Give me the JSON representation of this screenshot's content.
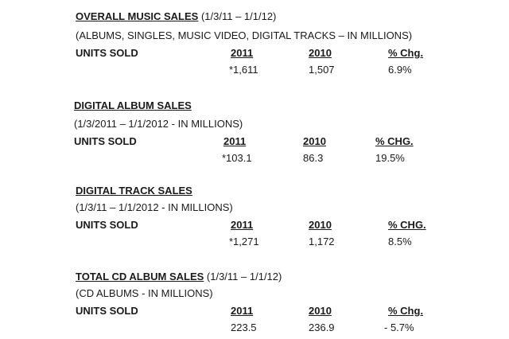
{
  "sections": [
    {
      "title": "OVERALL MUSIC SALES",
      "date_range": " (1/3/11 – 1/1/12)",
      "subtitle": "(ALBUMS, SINGLES, MUSIC VIDEO, DIGITAL TRACKS – IN MILLIONS)",
      "row_label": "UNITS SOLD",
      "col_2011": "2011",
      "col_2010": "2010",
      "col_chg": "% Chg.",
      "val_2011": "*1,611",
      "val_2010": "1,507",
      "val_chg": "6.9%"
    },
    {
      "title": "DIGITAL ALBUM SALES",
      "subtitle": "(1/3/2011 – 1/1/2012 - IN MILLIONS)",
      "row_label": "UNITS SOLD",
      "col_2011": "2011",
      "col_2010": "2010",
      "col_chg": "% CHG.",
      "val_2011": "*103.1",
      "val_2010": "86.3",
      "val_chg": "19.5%"
    },
    {
      "title": "DIGITAL TRACK SALES",
      "subtitle": "(1/3/11 – 1/1/2012 - IN MILLIONS)",
      "row_label": "UNITS SOLD",
      "col_2011": "2011",
      "col_2010": "2010",
      "col_chg": "% CHG.",
      "val_2011": "*1,271",
      "val_2010": "1,172",
      "val_chg": "8.5%"
    },
    {
      "title": "TOTAL CD ALBUM SALES",
      "date_range": " (1/3/11 – 1/1/12)",
      "subtitle": "(CD ALBUMS - IN MILLIONS)",
      "row_label": "UNITS SOLD",
      "col_2011": "2011",
      "col_2010": "2010",
      "col_chg": "% Chg.",
      "val_2011": "223.5",
      "val_2010": "236.9",
      "val_chg": "- 5.7%"
    }
  ]
}
